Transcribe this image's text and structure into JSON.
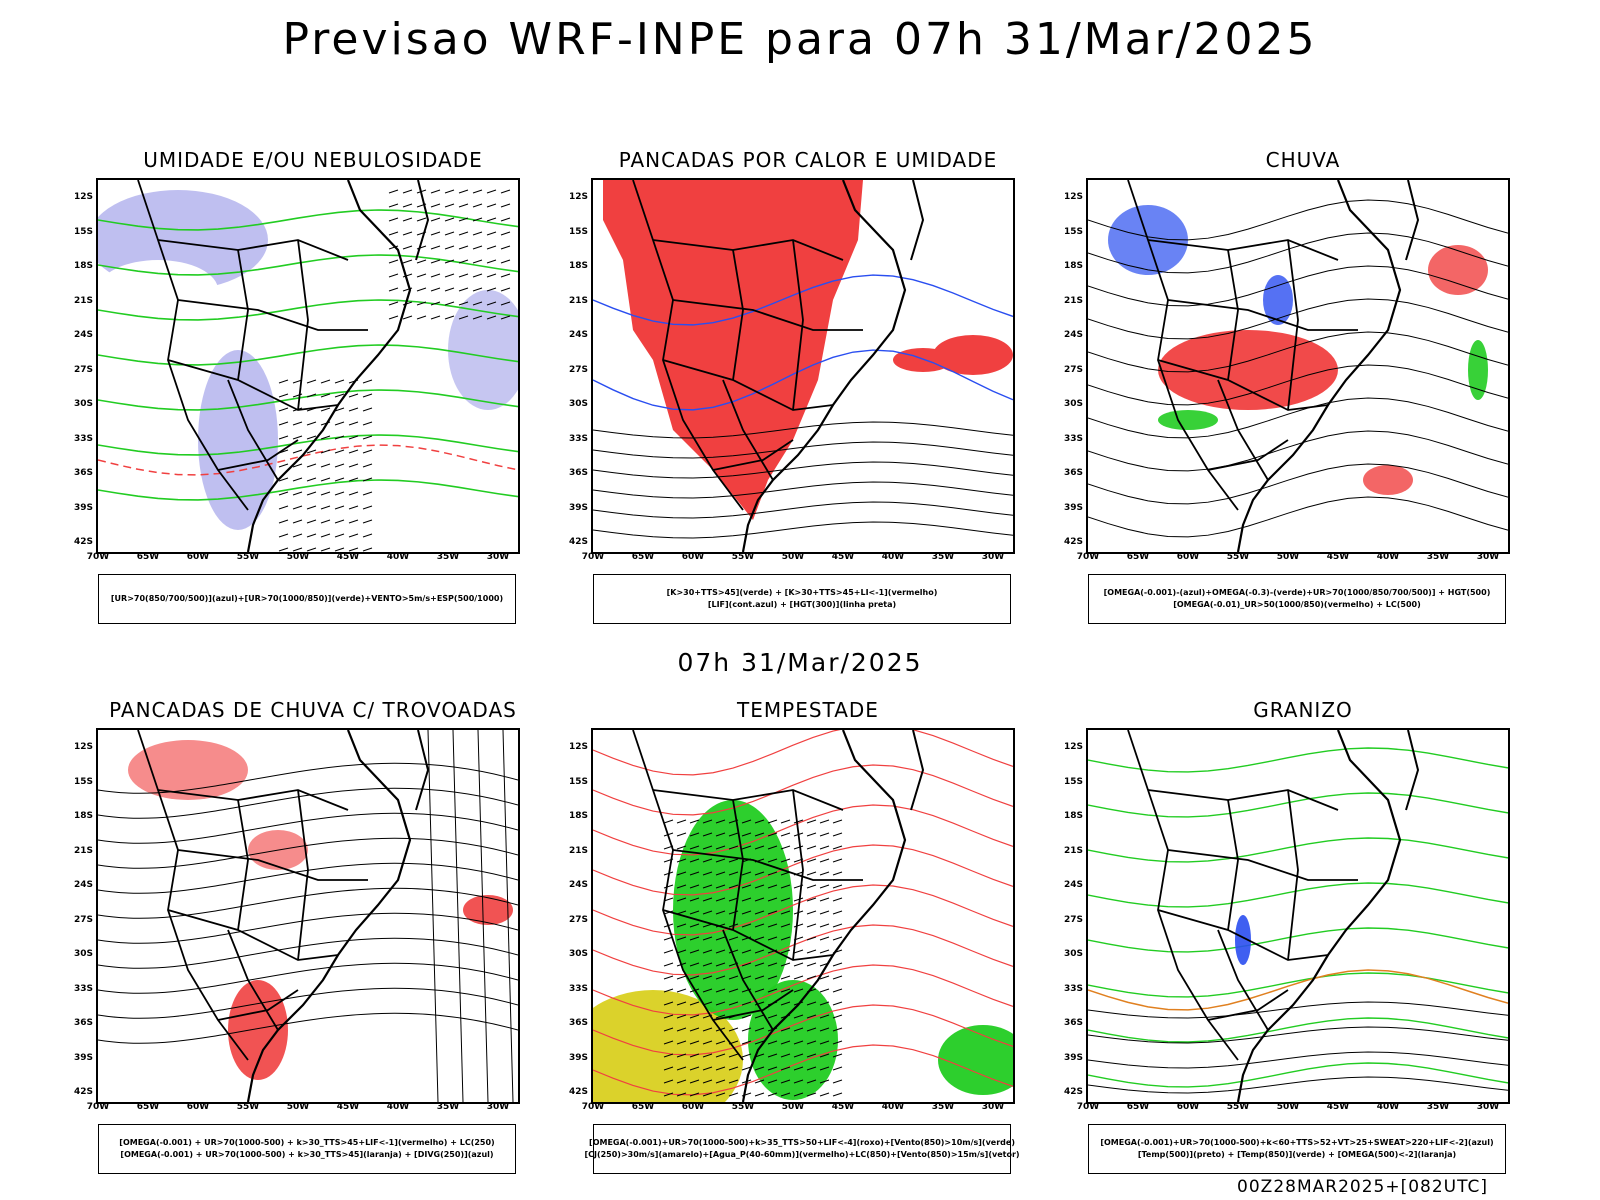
{
  "header": {
    "title": "Previsao WRF-INPE  para 07h 31/Mar/2025"
  },
  "middle": {
    "datetime": "07h 31/Mar/2025"
  },
  "footer": {
    "run": "00Z28MAR2025+[082UTC]"
  },
  "axes": {
    "lat_labels": [
      "12S",
      "15S",
      "18S",
      "21S",
      "24S",
      "27S",
      "30S",
      "33S",
      "36S",
      "39S",
      "42S"
    ],
    "lon_labels": [
      "70W",
      "65W",
      "60W",
      "55W",
      "50W",
      "45W",
      "40W",
      "35W",
      "30W"
    ]
  },
  "panels": [
    {
      "title": "UMIDADE E/OU NEBULOSIDADE",
      "legend": [
        "[UR>70(850/700/500)](azul)+[UR>70(1000/850)](verde)+VENTO>5m/s+ESP(500/1000)"
      ]
    },
    {
      "title": "PANCADAS POR CALOR E UMIDADE",
      "legend": [
        "[K>30+TTS>45](verde) + [K>30+TTS>45+LI<-1](vermelho)",
        "[LIF](cont.azul) + [HGT(300)](linha preta)"
      ]
    },
    {
      "title": "CHUVA",
      "legend": [
        "[OMEGA(-0.001)-(azul)+OMEGA(-0.3)-(verde)+UR>70(1000/850/700/500)] + HGT(500)",
        "[OMEGA(-0.01)_UR>50(1000/850)(vermelho) + LC(500)"
      ]
    },
    {
      "title": "PANCADAS DE CHUVA C/ TROVOADAS",
      "legend": [
        "[OMEGA(-0.001) + UR>70(1000-500) + k>30_TTS>45+LIF<-1](vermelho) + LC(250)",
        "[OMEGA(-0.001) + UR>70(1000-500) + k>30_TTS>45](laranja) + [DIVG(250)](azul)"
      ]
    },
    {
      "title": "TEMPESTADE",
      "legend": [
        "[OMEGA(-0.001)+UR>70(1000-500)+k>35_TTS>50+LIF<-4](roxo)+[Vento(850)>10m/s](verde)",
        "[CJ(250)>30m/s](amarelo)+[Agua_P(40-60mm)](vermelho)+LC(850)+[Vento(850)>15m/s](vetor)"
      ]
    },
    {
      "title": "GRANIZO",
      "legend": [
        "[OMEGA(-0.001)+UR>70(1000-500)+k<60+TTS>52+VT>25+SWEAT>220+LIF<-2](azul)",
        "[Temp(500)](preto) + [Temp(850)](verde) + [OMEGA(500)<-2](laranja)"
      ]
    }
  ],
  "colors": {
    "blue_fill": "#b8b8ee",
    "green_line": "#22cc22",
    "red_fill": "#f04040",
    "blue_line": "#2a4ef0",
    "yellow_fill": "#d9d020",
    "green_fill": "#22cc22",
    "orange_line": "#e08020"
  }
}
